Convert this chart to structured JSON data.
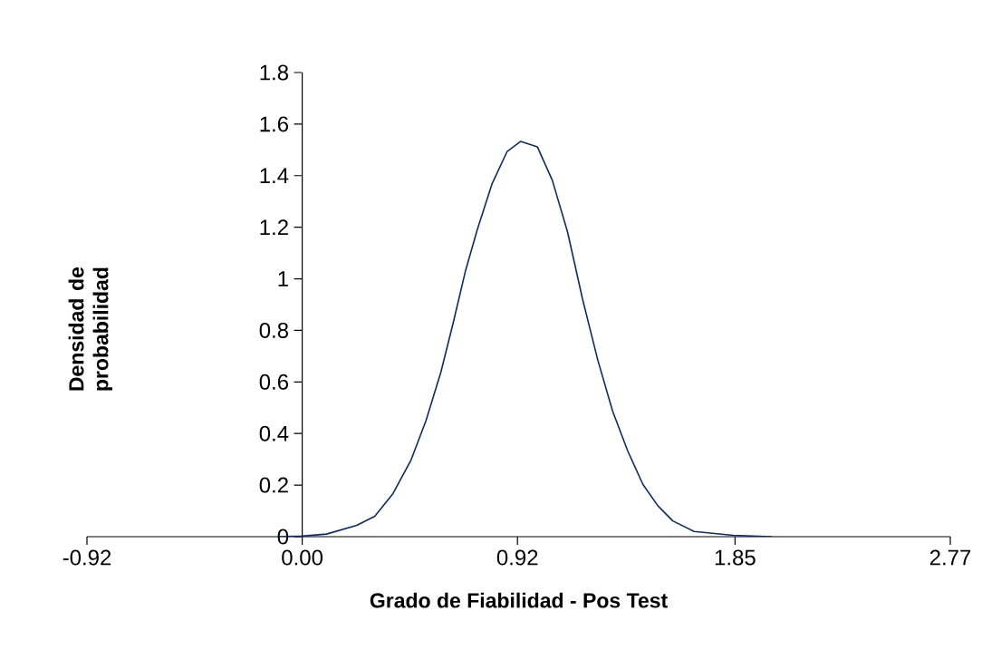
{
  "chart_data": {
    "type": "line",
    "xlabel": "Grado de Fiabilidad - Pos Test",
    "ylabel": "Densidad de probabilidad",
    "x": [
      -0.1,
      0.0,
      0.104,
      0.233,
      0.31,
      0.388,
      0.465,
      0.529,
      0.593,
      0.645,
      0.697,
      0.749,
      0.812,
      0.876,
      0.934,
      1.005,
      1.069,
      1.134,
      1.198,
      1.263,
      1.327,
      1.391,
      1.456,
      1.52,
      1.584,
      1.675,
      1.842,
      2.009
    ],
    "series": [
      {
        "color": "#0d2a6b",
        "values": [
          0.0,
          0.002,
          0.01,
          0.044,
          0.079,
          0.167,
          0.297,
          0.45,
          0.639,
          0.828,
          1.028,
          1.193,
          1.37,
          1.494,
          1.533,
          1.512,
          1.382,
          1.182,
          0.922,
          0.686,
          0.486,
          0.333,
          0.203,
          0.12,
          0.061,
          0.02,
          0.005,
          0.0
        ]
      }
    ],
    "xlim": [
      -0.92,
      2.77
    ],
    "ylim": [
      0,
      1.8
    ],
    "xticks": [
      -0.92,
      {
        "value": 0,
        "label": "0.00"
      },
      0.92,
      1.85,
      2.77
    ],
    "yticks": [
      0,
      0.2,
      0.4,
      0.6,
      0.8,
      1,
      1.2,
      1.4,
      1.6,
      1.8
    ],
    "grid": false,
    "marker": "none",
    "line_style": "solid"
  }
}
